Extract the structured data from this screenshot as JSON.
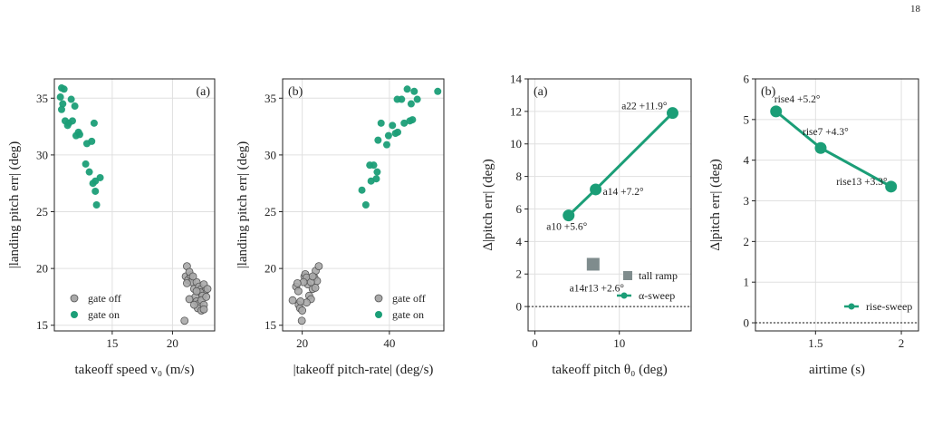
{
  "page": {
    "number": "18"
  },
  "colors": {
    "off": "#a9a9a9",
    "on": "#1b9e77",
    "ramp": "#7f8c8d",
    "axis": "#222222",
    "grid": "#e0e0e0"
  },
  "chart_data": [
    {
      "type": "scatter",
      "panel_label": "(a)",
      "xlabel": "takeoff speed v₀ (m/s)",
      "ylabel": "|landing pitch err| (deg)",
      "xlim": [
        10.2,
        23.5
      ],
      "ylim": [
        14.5,
        36.7
      ],
      "xticks": [
        15,
        20
      ],
      "yticks": [
        15,
        20,
        25,
        30,
        35
      ],
      "grid": true,
      "legend_position": "lower-left",
      "series": [
        {
          "name": "gate off",
          "points": [
            [
              21.0,
              15.4
            ],
            [
              21.2,
              20.2
            ],
            [
              21.1,
              19.3
            ],
            [
              21.3,
              19.0
            ],
            [
              21.5,
              19.4
            ],
            [
              21.6,
              18.8
            ],
            [
              21.8,
              18.2
            ],
            [
              22.0,
              18.8
            ],
            [
              22.2,
              18.4
            ],
            [
              22.4,
              18.2
            ],
            [
              22.6,
              18.6
            ],
            [
              22.7,
              18.0
            ],
            [
              22.3,
              17.9
            ],
            [
              22.5,
              17.6
            ],
            [
              21.9,
              17.5
            ],
            [
              21.4,
              17.3
            ],
            [
              22.0,
              17.1
            ],
            [
              22.2,
              16.9
            ],
            [
              22.4,
              17.2
            ],
            [
              22.6,
              16.8
            ],
            [
              22.1,
              16.5
            ],
            [
              22.4,
              16.3
            ],
            [
              21.8,
              16.8
            ],
            [
              21.2,
              18.7
            ],
            [
              21.4,
              19.7
            ],
            [
              22.9,
              18.2
            ],
            [
              22.8,
              17.5
            ],
            [
              21.7,
              19.3
            ],
            [
              22.0,
              18.0
            ],
            [
              22.6,
              16.4
            ]
          ]
        },
        {
          "name": "gate on",
          "points": [
            [
              10.8,
              35.9
            ],
            [
              11.0,
              35.8
            ],
            [
              10.7,
              35.1
            ],
            [
              10.9,
              34.5
            ],
            [
              10.8,
              34.0
            ],
            [
              11.6,
              34.9
            ],
            [
              11.9,
              34.3
            ],
            [
              11.1,
              33.0
            ],
            [
              11.4,
              32.8
            ],
            [
              11.7,
              33.0
            ],
            [
              11.3,
              32.6
            ],
            [
              12.2,
              32.0
            ],
            [
              12.0,
              31.7
            ],
            [
              12.3,
              31.8
            ],
            [
              13.5,
              32.8
            ],
            [
              13.3,
              31.2
            ],
            [
              12.9,
              31.0
            ],
            [
              12.8,
              29.2
            ],
            [
              13.1,
              28.5
            ],
            [
              13.6,
              27.7
            ],
            [
              14.0,
              28.0
            ],
            [
              13.6,
              26.8
            ],
            [
              13.7,
              25.6
            ],
            [
              13.4,
              27.5
            ]
          ]
        }
      ]
    },
    {
      "type": "scatter",
      "panel_label": "(b)",
      "xlabel": "|takeoff pitch-rate| (deg/s)",
      "ylabel": "|landing pitch err| (deg)",
      "xlim": [
        15.5,
        52.5
      ],
      "ylim": [
        14.5,
        36.7
      ],
      "xticks": [
        20,
        40
      ],
      "yticks": [
        15,
        20,
        25,
        30,
        35
      ],
      "grid": true,
      "legend_position": "lower-right",
      "series": [
        {
          "name": "gate off",
          "points": [
            [
              17.8,
              17.2
            ],
            [
              18.6,
              18.4
            ],
            [
              19.2,
              16.8
            ],
            [
              19.5,
              16.5
            ],
            [
              19.9,
              15.4
            ],
            [
              20.0,
              16.3
            ],
            [
              20.5,
              19.3
            ],
            [
              20.7,
              19.5
            ],
            [
              21.0,
              19.2
            ],
            [
              21.3,
              18.6
            ],
            [
              21.6,
              17.6
            ],
            [
              22.0,
              17.3
            ],
            [
              22.4,
              18.2
            ],
            [
              22.8,
              19.2
            ],
            [
              23.1,
              19.8
            ],
            [
              23.4,
              18.9
            ],
            [
              23.8,
              20.2
            ],
            [
              21.0,
              17.0
            ],
            [
              19.1,
              18.0
            ],
            [
              20.3,
              18.8
            ],
            [
              22.0,
              18.8
            ],
            [
              19.6,
              17.1
            ],
            [
              18.9,
              18.7
            ],
            [
              23.0,
              18.3
            ],
            [
              22.4,
              19.3
            ]
          ]
        },
        {
          "name": "gate on",
          "points": [
            [
              33.7,
              26.9
            ],
            [
              34.6,
              25.6
            ],
            [
              35.5,
              29.1
            ],
            [
              36.4,
              29.1
            ],
            [
              35.8,
              27.7
            ],
            [
              37.0,
              27.9
            ],
            [
              37.2,
              28.5
            ],
            [
              37.4,
              31.3
            ],
            [
              38.1,
              32.8
            ],
            [
              39.4,
              30.9
            ],
            [
              39.8,
              31.7
            ],
            [
              40.7,
              32.6
            ],
            [
              41.4,
              31.9
            ],
            [
              41.9,
              32.0
            ],
            [
              42.8,
              34.9
            ],
            [
              41.8,
              34.9
            ],
            [
              43.4,
              32.8
            ],
            [
              44.1,
              35.8
            ],
            [
              44.7,
              33.0
            ],
            [
              45.0,
              34.5
            ],
            [
              45.7,
              35.6
            ],
            [
              46.4,
              34.9
            ],
            [
              45.3,
              33.1
            ],
            [
              51.1,
              35.6
            ]
          ]
        }
      ]
    },
    {
      "type": "line",
      "panel_label": "(a)",
      "xlabel": "takeoff pitch θ₀ (deg)",
      "ylabel": "Δ|pitch err| (deg)",
      "xlim": [
        -0.8,
        18.5
      ],
      "ylim": [
        -1.5,
        14.0
      ],
      "xticks": [
        0,
        10
      ],
      "yticks": [
        0,
        2,
        4,
        6,
        8,
        10,
        12,
        14
      ],
      "grid": true,
      "zero_line": true,
      "legend_position": "lower-right",
      "series": [
        {
          "name": "α-sweep",
          "points": [
            [
              4.0,
              5.6
            ],
            [
              7.2,
              7.2
            ],
            [
              16.3,
              11.9
            ]
          ],
          "labels": [
            "a10 +5.6°",
            "a14 +7.2°",
            "a22 +11.9°"
          ]
        },
        {
          "name": "tall ramp",
          "points": [
            [
              6.9,
              2.6
            ]
          ],
          "labels": [
            "a14r13 +2.6°"
          ]
        }
      ]
    },
    {
      "type": "line",
      "panel_label": "(b)",
      "xlabel": "airtime (s)",
      "ylabel": "Δ|pitch err| (deg)",
      "xlim": [
        1.15,
        2.1
      ],
      "ylim": [
        -0.2,
        6.0
      ],
      "xticks": [
        1.5,
        2.0
      ],
      "yticks": [
        0,
        1,
        2,
        3,
        4,
        5,
        6
      ],
      "grid": true,
      "zero_line": true,
      "legend_position": "lower-right",
      "series": [
        {
          "name": "rise-sweep",
          "points": [
            [
              1.27,
              5.2
            ],
            [
              1.53,
              4.3
            ],
            [
              1.94,
              3.35
            ]
          ],
          "labels": [
            "rise4 +5.2°",
            "rise7 +4.3°",
            "rise13 +3.3°"
          ]
        }
      ]
    }
  ]
}
